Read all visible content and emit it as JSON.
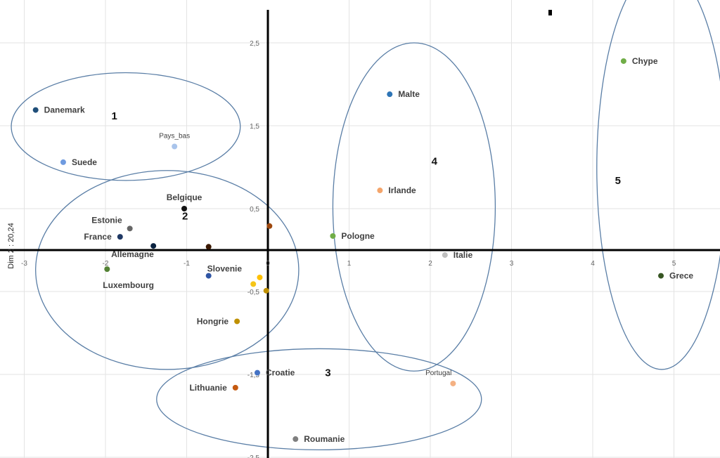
{
  "chart_data": {
    "type": "scatter",
    "ylabel": "Dim 2 : 20,24",
    "xlim": [
      -3,
      5.5
    ],
    "ylim": [
      -2.5,
      2.9
    ],
    "grid": true,
    "x_ticks": [
      {
        "value": -3,
        "label": "-3"
      },
      {
        "value": -2,
        "label": "-2"
      },
      {
        "value": -1,
        "label": "-1"
      },
      {
        "value": 0,
        "label": "0"
      },
      {
        "value": 1,
        "label": "1"
      },
      {
        "value": 2,
        "label": "2"
      },
      {
        "value": 3,
        "label": "3"
      },
      {
        "value": 4,
        "label": "4"
      },
      {
        "value": 5,
        "label": "5"
      }
    ],
    "y_ticks": [
      {
        "value": 2.5,
        "label": "2,5"
      },
      {
        "value": 1.5,
        "label": "1,5"
      },
      {
        "value": 0.5,
        "label": "0,5"
      },
      {
        "value": -0.5,
        "label": "-0,5"
      },
      {
        "value": -1.5,
        "label": "-1,5"
      },
      {
        "value": -2.5,
        "label": "-2,5"
      }
    ],
    "points": [
      {
        "label": "Danemark",
        "x": -2.86,
        "y": 1.69,
        "color": "#1f4e79",
        "bold": true,
        "lpos": "right"
      },
      {
        "label": "Suede",
        "x": -2.52,
        "y": 1.06,
        "color": "#6f9be0",
        "bold": true,
        "lpos": "right"
      },
      {
        "label": "Pays_bas",
        "x": -1.15,
        "y": 1.25,
        "color": "#a9c4eb",
        "bold": false,
        "lpos": "above"
      },
      {
        "label": "Belgique",
        "x": -1.03,
        "y": 0.5,
        "color": "#111111",
        "bold": true,
        "lpos": "above"
      },
      {
        "label": "Estonie",
        "x": -1.7,
        "y": 0.26,
        "color": "#666666",
        "bold": true,
        "lpos": "aboveleft"
      },
      {
        "label": "France",
        "x": -1.82,
        "y": 0.16,
        "color": "#1f3864",
        "bold": true,
        "lpos": "left"
      },
      {
        "label": "Allemagne",
        "x": -1.41,
        "y": 0.05,
        "color": "#0a2240",
        "bold": true,
        "lpos": "below"
      },
      {
        "label": "",
        "x": -0.73,
        "y": 0.04,
        "color": "#3a1800"
      },
      {
        "label": "",
        "x": 0.02,
        "y": 0.29,
        "color": "#9e480e"
      },
      {
        "label": "Luxembourg",
        "x": -1.98,
        "y": -0.23,
        "color": "#548235",
        "bold": true,
        "lpos": "below"
      },
      {
        "label": "Slovenie",
        "x": -0.73,
        "y": -0.31,
        "color": "#2f55a4",
        "bold": true,
        "lpos": "aboveright"
      },
      {
        "label": "",
        "x": -0.1,
        "y": -0.33,
        "color": "#ffc000"
      },
      {
        "label": "",
        "x": -0.18,
        "y": -0.41,
        "color": "#f5c518"
      },
      {
        "label": "",
        "x": -0.02,
        "y": -0.49,
        "color": "#bf9000"
      },
      {
        "label": "Hongrie",
        "x": -0.38,
        "y": -0.86,
        "color": "#bf9000",
        "bold": true,
        "lpos": "left"
      },
      {
        "label": "Malte",
        "x": 1.5,
        "y": 1.88,
        "color": "#2e75b6",
        "bold": true,
        "lpos": "right"
      },
      {
        "label": "Irlande",
        "x": 1.38,
        "y": 0.72,
        "color": "#f4a56b",
        "bold": true,
        "lpos": "right"
      },
      {
        "label": "Pologne",
        "x": 0.8,
        "y": 0.17,
        "color": "#70ad47",
        "bold": true,
        "lpos": "right"
      },
      {
        "label": "Italie",
        "x": 2.18,
        "y": -0.06,
        "color": "#bfbfbf",
        "bold": true,
        "lpos": "right"
      },
      {
        "label": "Chype",
        "x": 4.38,
        "y": 2.28,
        "color": "#70ad47",
        "bold": true,
        "lpos": "right"
      },
      {
        "label": "Grece",
        "x": 4.84,
        "y": -0.31,
        "color": "#375623",
        "bold": true,
        "lpos": "right"
      },
      {
        "label": "Croatie",
        "x": -0.13,
        "y": -1.48,
        "color": "#4472c4",
        "bold": true,
        "lpos": "right"
      },
      {
        "label": "Lithuanie",
        "x": -0.4,
        "y": -1.66,
        "color": "#c55a11",
        "bold": true,
        "lpos": "left"
      },
      {
        "label": "Portugal",
        "x": 2.28,
        "y": -1.61,
        "color": "#f4b183",
        "bold": false,
        "lpos": "aboveleft"
      },
      {
        "label": "Roumanie",
        "x": 0.34,
        "y": -2.28,
        "color": "#7f7f7f",
        "bold": true,
        "lpos": "right"
      }
    ],
    "clusters": [
      {
        "label": "1",
        "cx": -1.75,
        "cy": 1.49,
        "rx": 1.41,
        "ry": 0.65,
        "lx": -1.89,
        "ly": 1.62
      },
      {
        "label": "2",
        "cx": -1.24,
        "cy": -0.24,
        "rx": 1.62,
        "ry": 1.2,
        "lx": -1.02,
        "ly": 0.41
      },
      {
        "label": "3",
        "cx": 0.63,
        "cy": -1.8,
        "rx": 2.0,
        "ry": 0.61,
        "lx": 0.74,
        "ly": -1.48
      },
      {
        "label": "4",
        "cx": 1.8,
        "cy": 0.52,
        "rx": 1.0,
        "ry": 1.98,
        "lx": 2.05,
        "ly": 1.07
      },
      {
        "label": "5",
        "cx": 4.85,
        "cy": 0.99,
        "rx": 0.8,
        "ry": 2.43,
        "lx": 4.31,
        "ly": 0.84
      }
    ]
  }
}
